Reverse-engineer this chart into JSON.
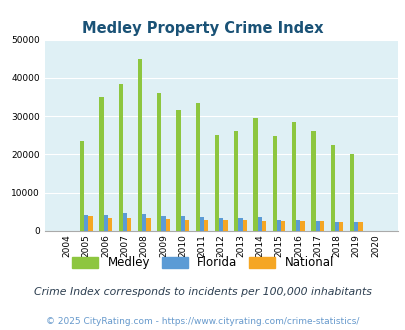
{
  "title": "Medley Property Crime Index",
  "years": [
    2004,
    2005,
    2006,
    2007,
    2008,
    2009,
    2010,
    2011,
    2012,
    2013,
    2014,
    2015,
    2016,
    2017,
    2018,
    2019,
    2020
  ],
  "medley": [
    0,
    23500,
    35000,
    38500,
    45000,
    36000,
    31500,
    33500,
    25200,
    26200,
    29500,
    24900,
    28500,
    26000,
    22500,
    20200,
    0
  ],
  "florida": [
    0,
    4100,
    4100,
    4700,
    4500,
    4000,
    3800,
    3700,
    3400,
    3500,
    3700,
    3000,
    2900,
    2700,
    2300,
    2300,
    0
  ],
  "national": [
    0,
    3800,
    3500,
    3500,
    3400,
    3200,
    3000,
    2900,
    2900,
    2800,
    2700,
    2600,
    2500,
    2500,
    2300,
    2300,
    0
  ],
  "medley_color": "#8dc63f",
  "florida_color": "#5b9bd5",
  "national_color": "#f5a623",
  "bg_color": "#dff0f5",
  "ylim": [
    0,
    50000
  ],
  "yticks": [
    0,
    10000,
    20000,
    30000,
    40000,
    50000
  ],
  "subtitle": "Crime Index corresponds to incidents per 100,000 inhabitants",
  "footer": "© 2025 CityRating.com - https://www.cityrating.com/crime-statistics/",
  "title_color": "#1a5276",
  "subtitle_color": "#2c3e50",
  "footer_color": "#6699cc"
}
